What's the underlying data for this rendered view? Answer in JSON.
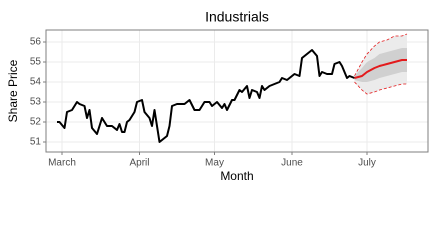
{
  "chart_data": {
    "type": "line",
    "title": "Industrials",
    "x_label": "Month",
    "y_label": "Share Price",
    "xlim": [
      -6.4,
      146.4
    ],
    "ylim": [
      50.5,
      56.6
    ],
    "xticks": [
      {
        "value": 0,
        "label": "March"
      },
      {
        "value": 31,
        "label": "April"
      },
      {
        "value": 61,
        "label": "May"
      },
      {
        "value": 92,
        "label": "June"
      },
      {
        "value": 122,
        "label": "July"
      }
    ],
    "yticks": [
      51,
      52,
      53,
      54,
      55,
      56
    ],
    "grid": true,
    "series": [
      {
        "color": "#000000",
        "x": [
          -2,
          -1,
          1,
          2,
          4,
          6,
          7,
          9,
          10,
          11,
          12,
          14,
          15,
          16,
          18,
          20,
          22,
          23,
          24,
          25,
          26,
          27,
          29,
          30,
          32,
          33,
          35,
          36,
          37,
          39,
          40,
          42,
          43,
          44,
          46,
          49,
          51,
          53,
          55,
          57,
          59,
          60,
          62,
          64,
          65,
          66,
          68,
          69,
          71,
          72,
          74,
          75,
          76,
          78,
          79,
          80,
          81,
          83,
          85,
          87,
          88,
          90,
          91,
          93,
          95,
          96,
          98,
          100,
          102,
          103,
          104,
          106,
          108,
          109,
          111,
          112,
          114,
          115,
          117
        ],
        "values": [
          52.0,
          52.0,
          51.7,
          52.5,
          52.6,
          53.0,
          52.9,
          52.8,
          52.2,
          52.6,
          51.7,
          51.4,
          51.8,
          52.2,
          51.8,
          51.8,
          51.6,
          51.9,
          51.5,
          51.5,
          52.0,
          52.1,
          52.5,
          53.0,
          53.1,
          52.5,
          52.2,
          51.8,
          52.6,
          51.0,
          51.1,
          51.3,
          51.8,
          52.8,
          52.9,
          52.9,
          53.1,
          52.6,
          52.6,
          53.0,
          53.0,
          52.8,
          53.0,
          52.7,
          52.9,
          52.6,
          53.1,
          53.1,
          53.6,
          53.5,
          53.8,
          53.2,
          53.6,
          53.5,
          53.2,
          53.8,
          53.6,
          53.8,
          53.9,
          54.0,
          54.2,
          54.1,
          54.2,
          54.4,
          54.3,
          55.2,
          55.4,
          55.6,
          55.3,
          54.3,
          54.5,
          54.4,
          54.4,
          54.9,
          55.0,
          54.8,
          54.2,
          54.3,
          54.2
        ]
      },
      {
        "color": "#e31a1c",
        "x": [
          117,
          120,
          122,
          125,
          127,
          130,
          133,
          136,
          138
        ],
        "values": [
          54.2,
          54.3,
          54.5,
          54.7,
          54.8,
          54.9,
          55.0,
          55.1,
          55.1
        ],
        "intervals": [
          {
            "fill": "#ebebeb",
            "edge": "#e31a1c",
            "lower": [
              54.0,
              53.6,
              53.4,
              53.5,
              53.6,
              53.7,
              53.8,
              53.9,
              53.9
            ],
            "upper": [
              54.3,
              55.0,
              55.4,
              55.8,
              56.0,
              56.1,
              56.3,
              56.3,
              56.4
            ]
          },
          {
            "fill": "#d0d0d0",
            "lower": [
              54.1,
              54.0,
              54.0,
              54.1,
              54.2,
              54.3,
              54.4,
              54.5,
              54.5
            ],
            "upper": [
              54.3,
              54.7,
              55.0,
              55.2,
              55.4,
              55.5,
              55.6,
              55.7,
              55.7
            ]
          }
        ]
      }
    ]
  }
}
